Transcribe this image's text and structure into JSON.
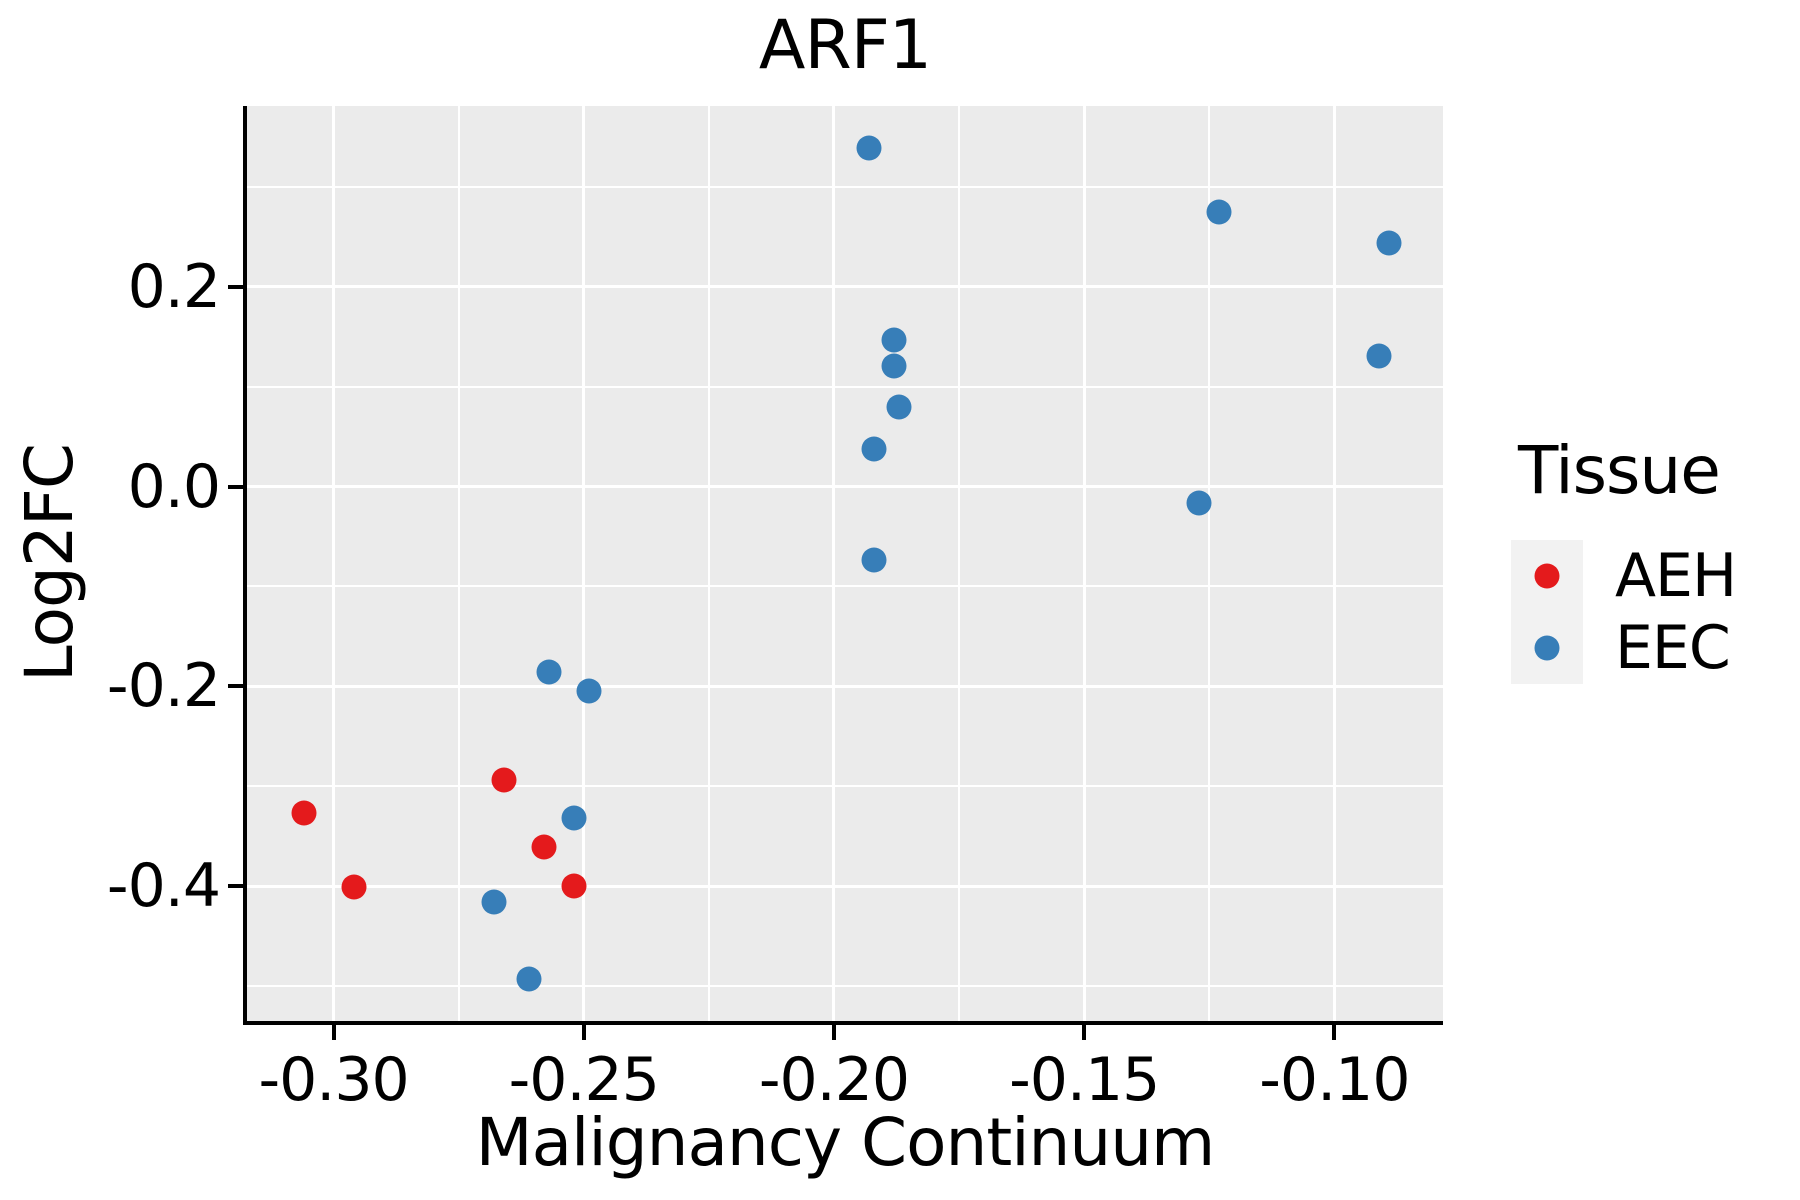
{
  "chart_data": {
    "type": "scatter",
    "title": "ARF1",
    "xlabel": "Malignancy Continuum",
    "ylabel": "Log2FC",
    "xlim": [
      -0.3173,
      -0.0783
    ],
    "ylim": [
      -0.5346,
      0.3806
    ],
    "grid": true,
    "panel_bg": "#EBEBEB",
    "gridline_color": "#FFFFFF",
    "axis_color": "#000000",
    "x_ticks": {
      "values": [
        -0.3,
        -0.25,
        -0.2,
        -0.15,
        -0.1
      ],
      "labels": [
        "-0.30",
        "-0.25",
        "-0.20",
        "-0.15",
        "-0.10"
      ]
    },
    "y_ticks": {
      "values": [
        0.2,
        0.0,
        -0.2,
        -0.4
      ],
      "labels": [
        "0.2",
        "0.0",
        "-0.2",
        "-0.4"
      ]
    },
    "x_minor_gridlines": [
      -0.275,
      -0.225,
      -0.175,
      -0.125
    ],
    "y_minor_gridlines": [
      0.3,
      0.1,
      -0.1,
      -0.3,
      -0.5
    ],
    "legend": {
      "title": "Tissue",
      "position": "right",
      "key_bg": "#F2F2F2",
      "entries": [
        {
          "label": "AEH",
          "color": "#E41A1C"
        },
        {
          "label": "EEC",
          "color": "#377EB8"
        }
      ]
    },
    "series": [
      {
        "name": "AEH",
        "color": "#E41A1C",
        "points": [
          [
            -0.306,
            -0.327
          ],
          [
            -0.296,
            -0.401
          ],
          [
            -0.266,
            -0.294
          ],
          [
            -0.258,
            -0.361
          ],
          [
            -0.252,
            -0.4
          ]
        ]
      },
      {
        "name": "EEC",
        "color": "#377EB8",
        "points": [
          [
            -0.257,
            -0.186
          ],
          [
            -0.249,
            -0.205
          ],
          [
            -0.252,
            -0.332
          ],
          [
            -0.268,
            -0.416
          ],
          [
            -0.261,
            -0.493
          ],
          [
            -0.193,
            0.339
          ],
          [
            -0.188,
            0.147
          ],
          [
            -0.188,
            0.121
          ],
          [
            -0.187,
            0.08
          ],
          [
            -0.192,
            0.038
          ],
          [
            -0.192,
            -0.073
          ],
          [
            -0.123,
            0.275
          ],
          [
            -0.089,
            0.244
          ],
          [
            -0.091,
            0.131
          ],
          [
            -0.127,
            -0.016
          ]
        ]
      }
    ]
  }
}
